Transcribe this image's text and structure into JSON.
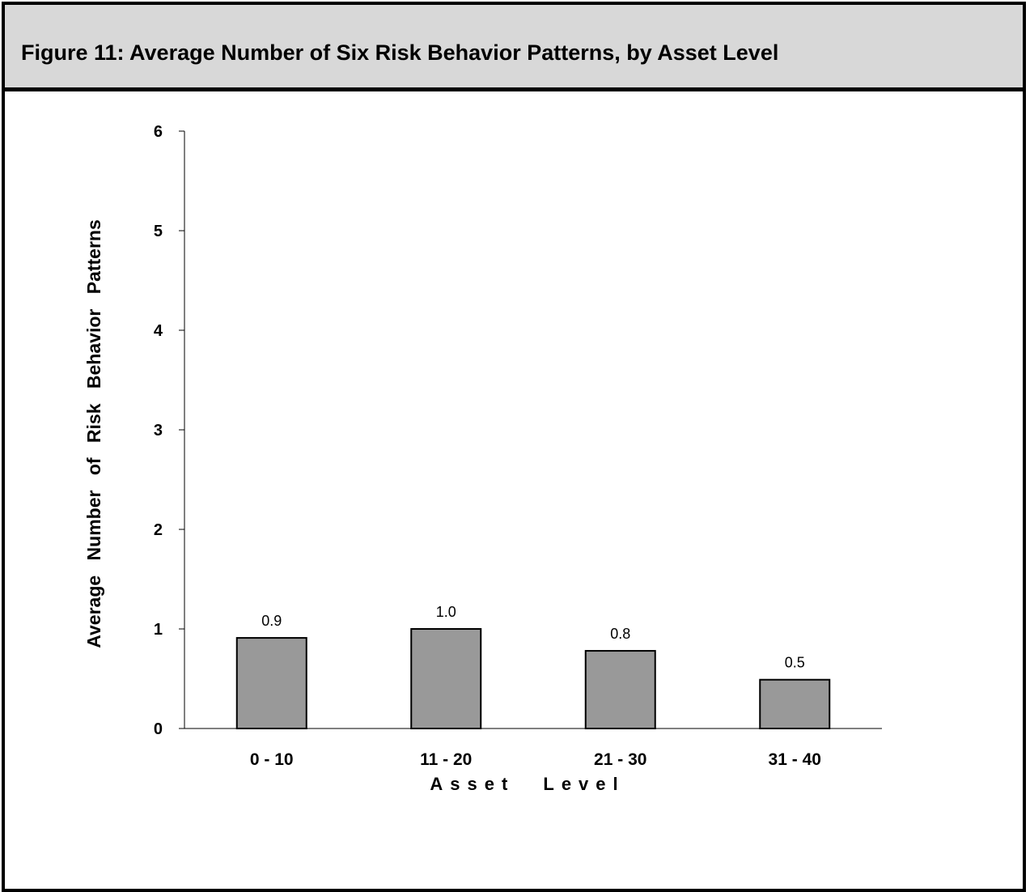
{
  "figure": {
    "title": "Figure 11: Average Number of Six Risk Behavior Patterns, by Asset Level"
  },
  "colors": {
    "header_bg": "#d8d8d8",
    "bar_fill": "#999999",
    "border": "#000000"
  },
  "chart_data": {
    "type": "bar",
    "title": "Figure 11: Average Number of Six Risk Behavior Patterns, by Asset Level",
    "xlabel": "Asset Level",
    "ylabel": "Average Number of Risk Behavior Patterns",
    "categories": [
      "0 - 10",
      "11 - 20",
      "21 - 30",
      "31 - 40"
    ],
    "values": [
      0.91,
      1.0,
      0.78,
      0.49
    ],
    "data_labels": [
      "0.9",
      "1.0",
      "0.8",
      "0.5"
    ],
    "ylim": [
      0,
      6
    ],
    "yticks": [
      0,
      1,
      2,
      3,
      4,
      5,
      6
    ],
    "grid": false,
    "legend": "none"
  }
}
